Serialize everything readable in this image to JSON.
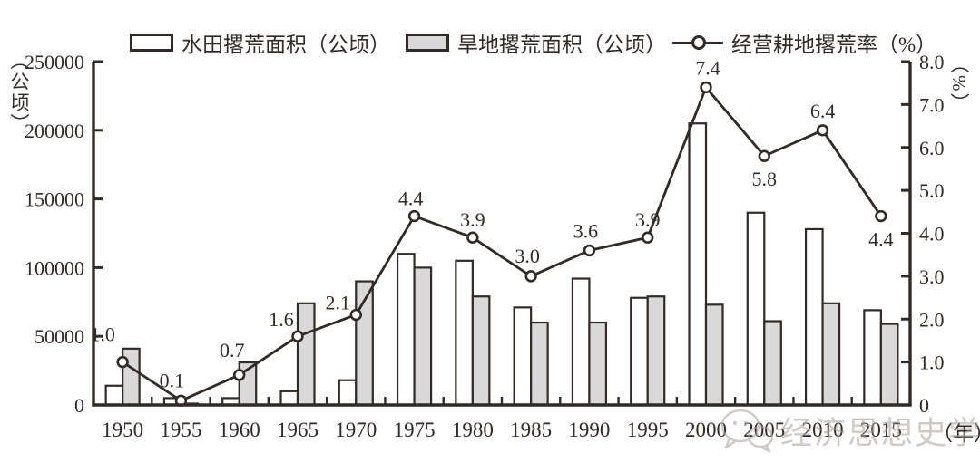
{
  "chart_data": {
    "type": "combo_bar_line",
    "title": "",
    "categories": [
      "1950",
      "1955",
      "1960",
      "1965",
      "1970",
      "1975",
      "1980",
      "1985",
      "1990",
      "1995",
      "2000",
      "2005",
      "2010",
      "2015"
    ],
    "series": [
      {
        "name": "水田撂荒面积（公顷）",
        "type": "bar",
        "fill": "#ffffff",
        "values": [
          14000,
          5000,
          5000,
          10000,
          18000,
          110000,
          105000,
          71000,
          92000,
          78000,
          205000,
          140000,
          128000,
          69000
        ]
      },
      {
        "name": "旱地撂荒面积（公顷）",
        "type": "bar",
        "fill": "#d9d9d9",
        "values": [
          41000,
          1000,
          31000,
          74000,
          90000,
          100000,
          79000,
          60000,
          60000,
          79000,
          73000,
          61000,
          74000,
          59000
        ]
      },
      {
        "name": "经营耕地撂荒率（%）",
        "type": "line",
        "axis": "right",
        "values": [
          1.0,
          0.1,
          0.7,
          1.6,
          2.1,
          4.4,
          3.9,
          3.0,
          3.6,
          3.9,
          7.4,
          5.8,
          6.4,
          4.4
        ],
        "point_labels": [
          "1.0",
          "0.1",
          "0.7",
          "1.6",
          "2.1",
          "4.4",
          "3.9",
          "3.0",
          "3.6",
          "3.9",
          "7.4",
          "5.8",
          "6.4",
          "4.4"
        ],
        "label_offsets": [
          [
            -22,
            -23
          ],
          [
            -10,
            -15
          ],
          [
            -8,
            -20
          ],
          [
            -18,
            -11
          ],
          [
            -20,
            -6
          ],
          [
            -4,
            -12
          ],
          [
            0,
            -12
          ],
          [
            -4,
            -15
          ],
          [
            -4,
            -14
          ],
          [
            0,
            -12
          ],
          [
            2,
            -14
          ],
          [
            0,
            33
          ],
          [
            0,
            -14
          ],
          [
            0,
            33
          ]
        ]
      }
    ],
    "left_axis": {
      "title": "（公顷）",
      "min": 0,
      "max": 250000,
      "tick_labels": [
        "0",
        "50000",
        "100000",
        "150000",
        "200000",
        "250000"
      ]
    },
    "right_axis": {
      "title": "（%）",
      "min": 0,
      "max": 8,
      "tick_labels": [
        "0",
        "1.0",
        "2.0",
        "3.0",
        "4.0",
        "5.0",
        "6.0",
        "7.0",
        "8.0"
      ]
    },
    "x_axis": {
      "unit_label": "（年）"
    },
    "grid": "off",
    "legend_position": "top",
    "colors": {
      "ink": "#322a26",
      "bar_gray": "#d9d9d9",
      "bar_white": "#ffffff",
      "watermark": "#a99f98"
    }
  },
  "watermark": {
    "text": "经济思想史学刊",
    "icon": "wechat-icon"
  }
}
